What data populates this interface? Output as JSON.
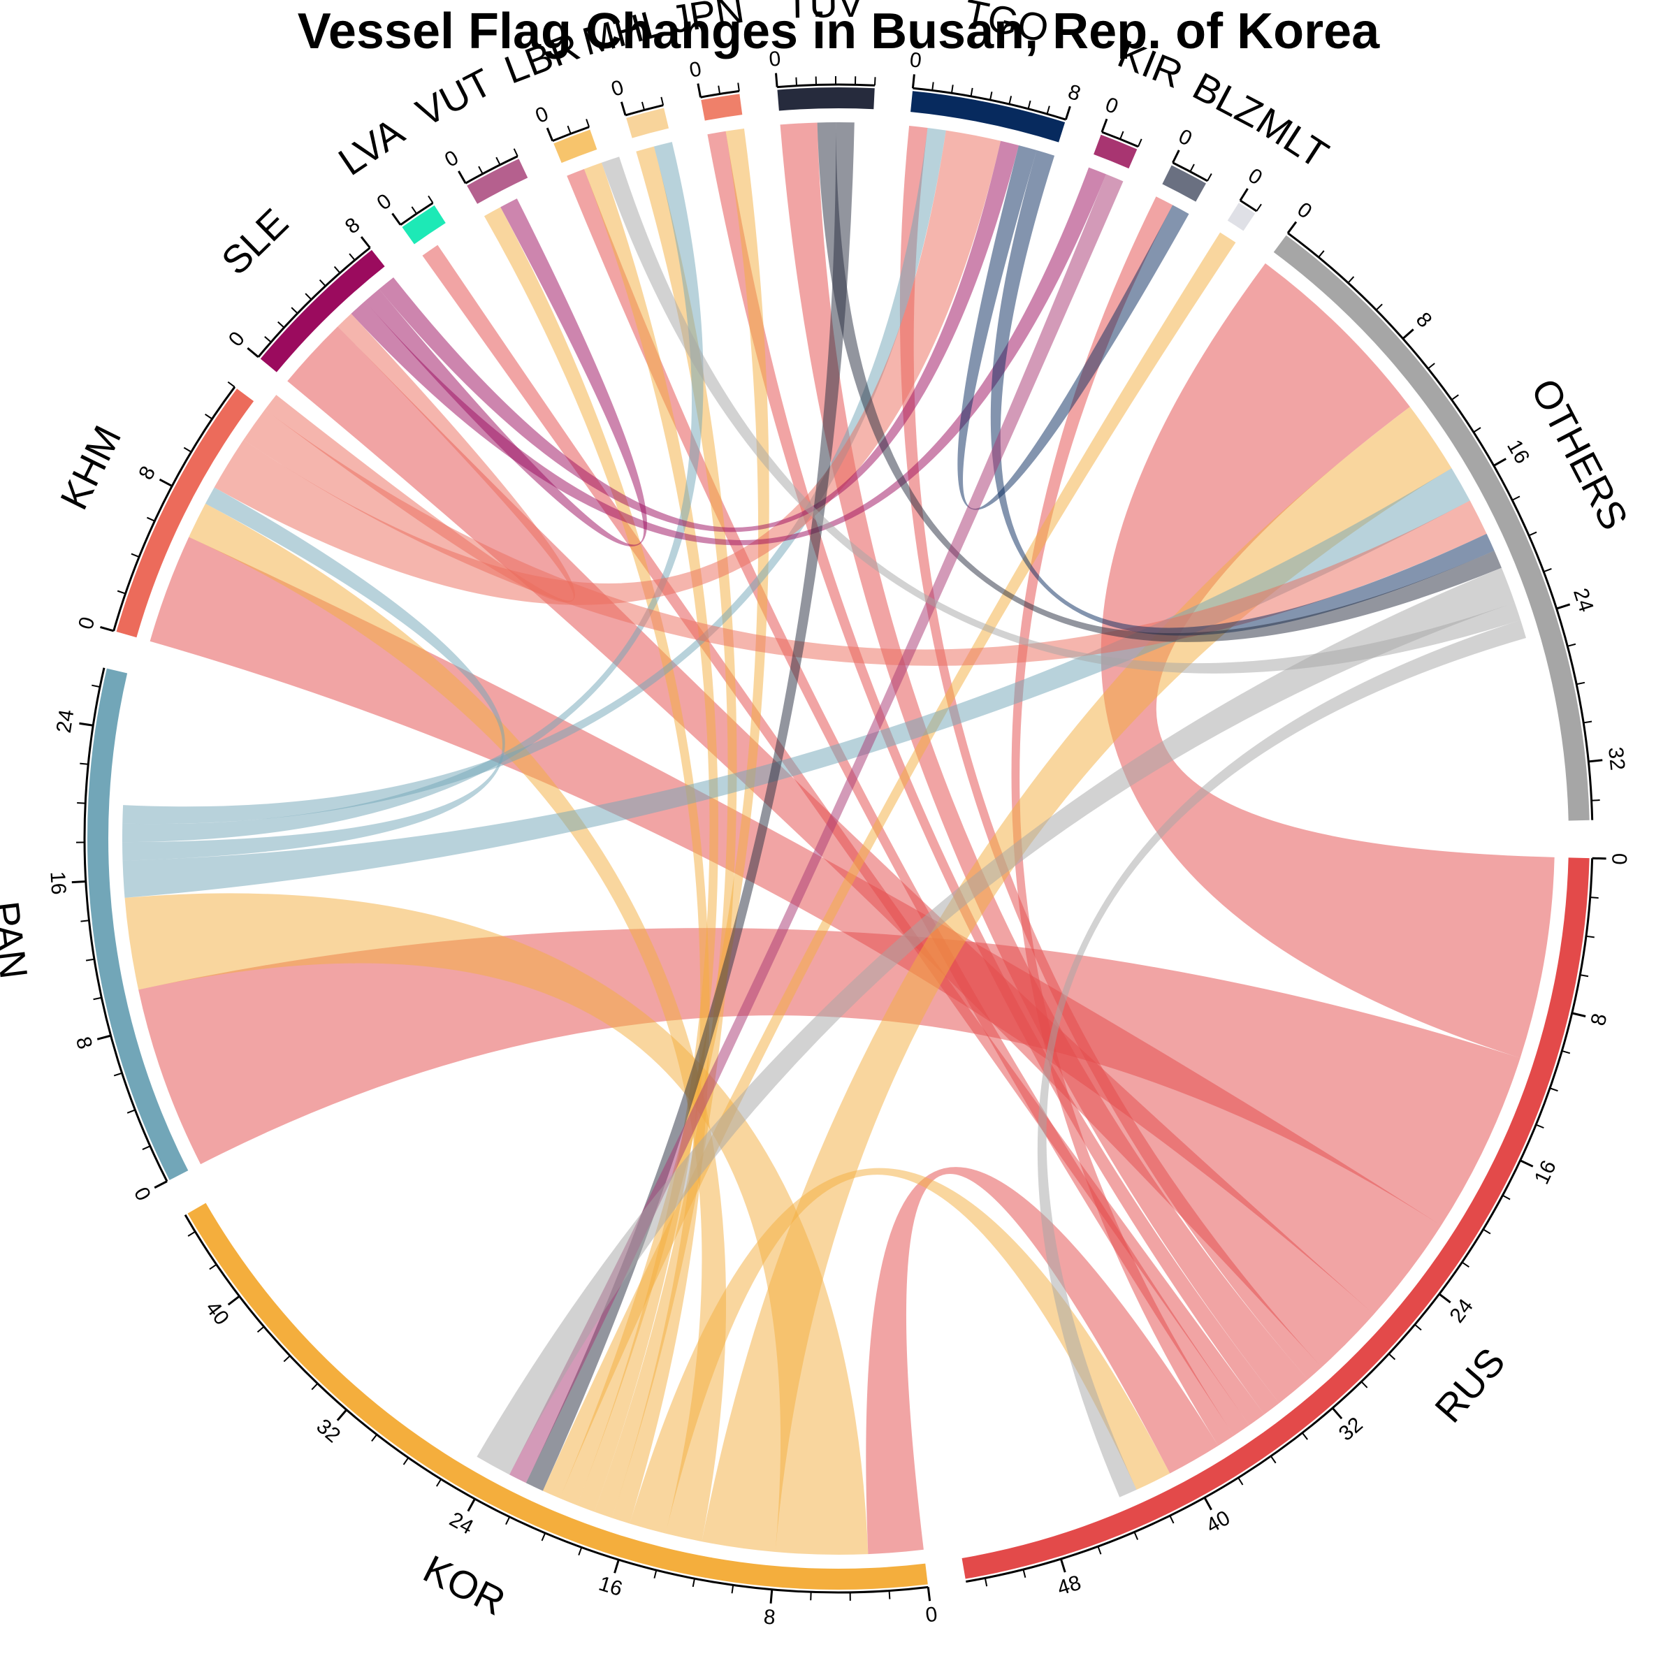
{
  "chart_data": {
    "type": "chord",
    "title": "Vessel Flag Changes in Busan, Rep. of Korea",
    "sectors": [
      {
        "name": "RUS",
        "total": 53,
        "color": "#e34a4a",
        "tick_step": 2,
        "label_step": 8
      },
      {
        "name": "KOR",
        "total": 45,
        "color": "#f4ae3d",
        "tick_step": 2,
        "label_step": 8
      },
      {
        "name": "PAN",
        "total": 27,
        "color": "#72a6b8",
        "tick_step": 2,
        "label_step": 8
      },
      {
        "name": "KHM",
        "total": 14,
        "color": "#ec6b5b",
        "tick_step": 2,
        "label_step": 8
      },
      {
        "name": "SLE",
        "total": 8,
        "color": "#9b0b5e",
        "tick_step": 1,
        "label_step": 8
      },
      {
        "name": "LVA",
        "total": 2,
        "color": "#1de9b6",
        "tick_step": 1,
        "label_step": 8
      },
      {
        "name": "VUT",
        "total": 3,
        "color": "#b5608e",
        "tick_step": 1,
        "label_step": 8
      },
      {
        "name": "LBR",
        "total": 2,
        "color": "#f7c46c",
        "tick_step": 1,
        "label_step": 8
      },
      {
        "name": "MHL",
        "total": 2,
        "color": "#f8d49b",
        "tick_step": 1,
        "label_step": 8
      },
      {
        "name": "JPN",
        "total": 2,
        "color": "#ef806a",
        "tick_step": 1,
        "label_step": 8
      },
      {
        "name": "TUV",
        "total": 5,
        "color": "#262b3d",
        "tick_step": 1,
        "label_step": 8
      },
      {
        "name": "TGO",
        "total": 8,
        "color": "#072a5e",
        "tick_step": 1,
        "label_step": 8
      },
      {
        "name": "KIR",
        "total": 2,
        "color": "#a83571",
        "tick_step": 1,
        "label_step": 8
      },
      {
        "name": "BLZ",
        "total": 2,
        "color": "#6a7081",
        "tick_step": 1,
        "label_step": 8
      },
      {
        "name": "MLT",
        "total": 1,
        "color": "#dfe0e6",
        "tick_step": 1,
        "label_step": 8
      },
      {
        "name": "OTHERS",
        "total": 35,
        "color": "#a6a6a6",
        "tick_step": 2,
        "label_step": 8
      }
    ],
    "flows": [
      {
        "from": "RUS",
        "to": "OTHERS",
        "value": 11
      },
      {
        "from": "RUS",
        "to": "PAN",
        "value": 10
      },
      {
        "from": "RUS",
        "to": "KHM",
        "value": 6
      },
      {
        "from": "RUS",
        "to": "SLE",
        "value": 4
      },
      {
        "from": "RUS",
        "to": "TGO",
        "value": 1
      },
      {
        "from": "RUS",
        "to": "TUV",
        "value": 2
      },
      {
        "from": "RUS",
        "to": "JPN",
        "value": 1
      },
      {
        "from": "RUS",
        "to": "LVA",
        "value": 1
      },
      {
        "from": "RUS",
        "to": "LBR",
        "value": 1
      },
      {
        "from": "RUS",
        "to": "BLZ",
        "value": 1
      },
      {
        "from": "RUS",
        "to": "KOR",
        "value": 3
      },
      {
        "from": "KOR",
        "to": "PAN",
        "value": 5
      },
      {
        "from": "KOR",
        "to": "OTHERS",
        "value": 4
      },
      {
        "from": "KOR",
        "to": "KHM",
        "value": 2
      },
      {
        "from": "KOR",
        "to": "RUS",
        "value": 2
      },
      {
        "from": "KOR",
        "to": "VUT",
        "value": 1
      },
      {
        "from": "KOR",
        "to": "MHL",
        "value": 1
      },
      {
        "from": "KOR",
        "to": "LBR",
        "value": 1
      },
      {
        "from": "KOR",
        "to": "JPN",
        "value": 1
      },
      {
        "from": "KOR",
        "to": "MLT",
        "value": 1
      },
      {
        "from": "PAN",
        "to": "OTHERS",
        "value": 2
      },
      {
        "from": "PAN",
        "to": "KHM",
        "value": 1
      },
      {
        "from": "PAN",
        "to": "MHL",
        "value": 1
      },
      {
        "from": "PAN",
        "to": "TGO",
        "value": 1
      },
      {
        "from": "KHM",
        "to": "TGO",
        "value": 3
      },
      {
        "from": "KHM",
        "to": "OTHERS",
        "value": 2
      },
      {
        "from": "KHM",
        "to": "SLE",
        "value": 1
      },
      {
        "from": "SLE",
        "to": "KIR",
        "value": 1
      },
      {
        "from": "SLE",
        "to": "VUT",
        "value": 1
      },
      {
        "from": "SLE",
        "to": "TGO",
        "value": 1
      },
      {
        "from": "TGO",
        "to": "BLZ",
        "value": 1
      },
      {
        "from": "TGO",
        "to": "OTHERS",
        "value": 1
      },
      {
        "from": "TUV",
        "to": "OTHERS",
        "value": 1
      },
      {
        "from": "TUV",
        "to": "KOR",
        "value": 1
      },
      {
        "from": "KIR",
        "to": "KOR",
        "value": 1
      },
      {
        "from": "OTHERS",
        "to": "KOR",
        "value": 2
      },
      {
        "from": "OTHERS",
        "to": "LBR",
        "value": 1
      },
      {
        "from": "OTHERS",
        "to": "RUS",
        "value": 1
      }
    ]
  }
}
